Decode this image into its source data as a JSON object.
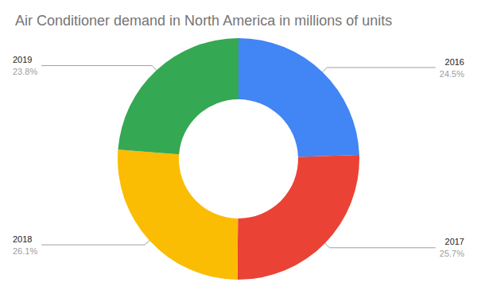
{
  "chart_data": {
    "type": "pie",
    "title": "Air Conditioner demand in North America in millions of units",
    "categories": [
      "2016",
      "2017",
      "2018",
      "2019"
    ],
    "values": [
      24.5,
      25.7,
      26.1,
      23.8
    ],
    "value_labels": [
      "24.5%",
      "25.7%",
      "26.1%",
      "23.8%"
    ],
    "colors": [
      "#4285f4",
      "#ea4335",
      "#fbbc04",
      "#34a853"
    ],
    "data_labels": true
  }
}
